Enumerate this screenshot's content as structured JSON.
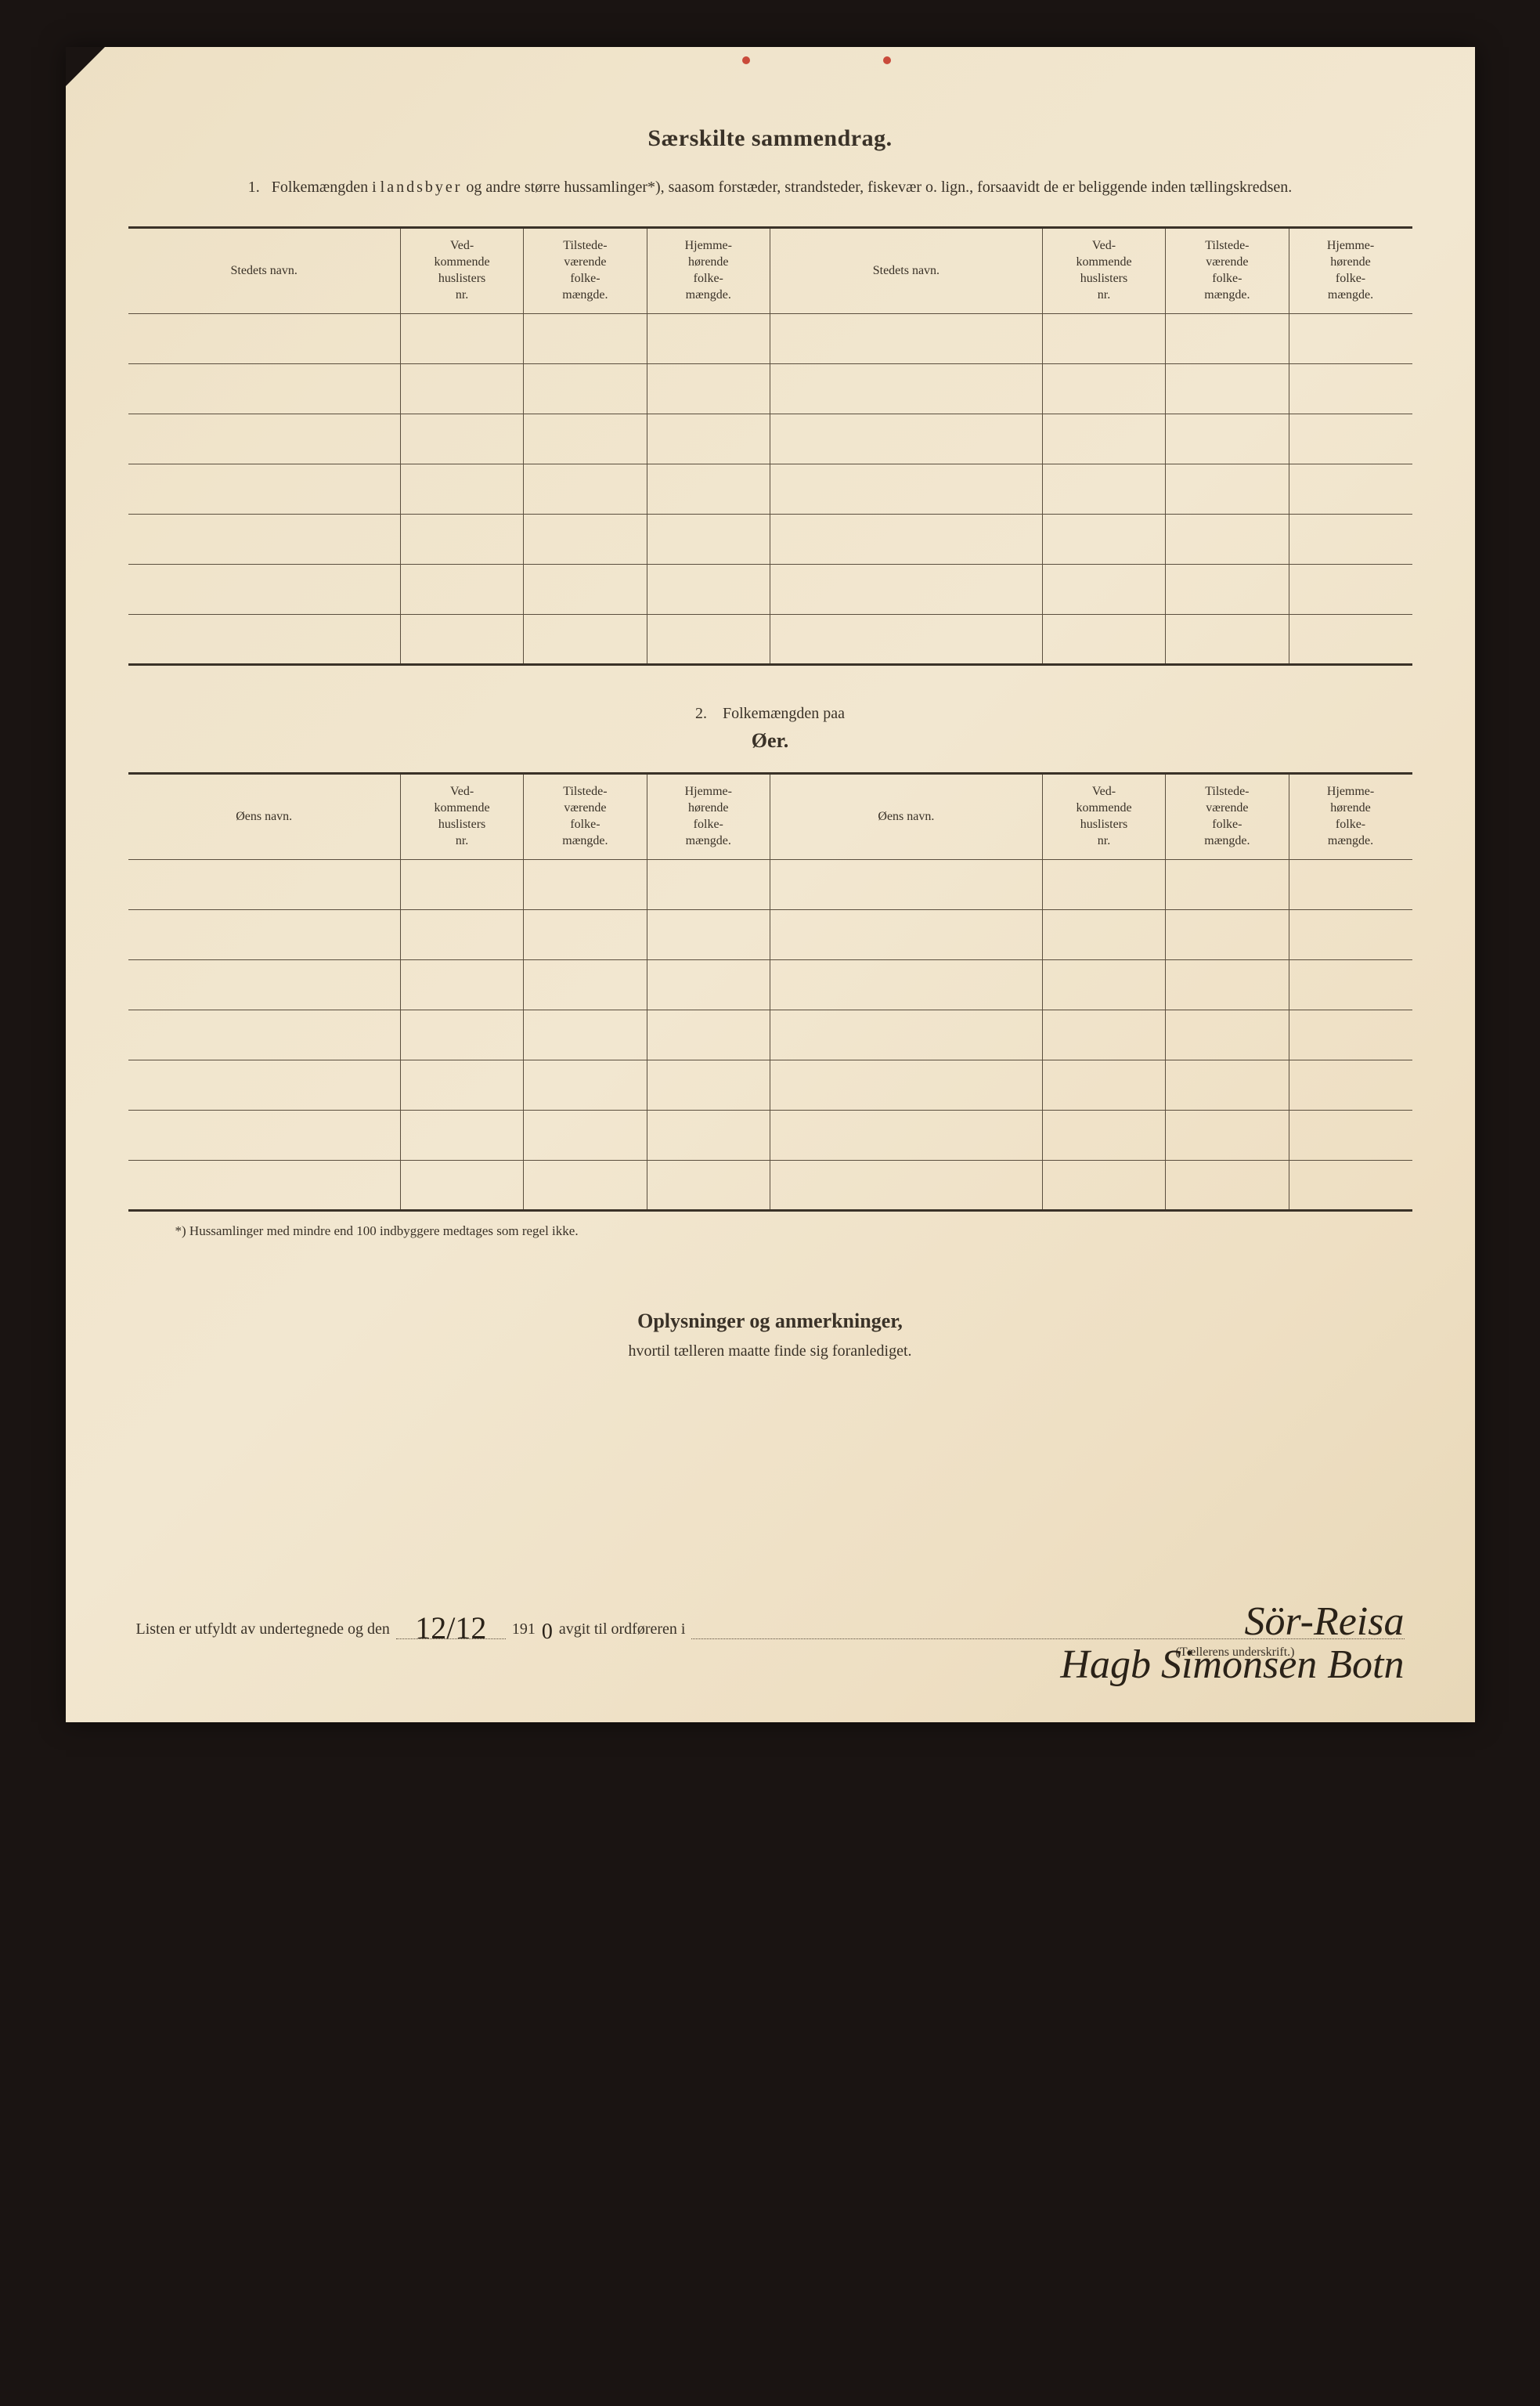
{
  "title": "Særskilte sammendrag.",
  "section1": {
    "number": "1.",
    "intro_part1": "Folkemængden i ",
    "intro_spaced": "landsbyer",
    "intro_part2": " og andre større hussamlinger*), saasom forstæder, strandsteder, fiskevær o. lign., forsaavidt de er beliggende inden tællingskredsen."
  },
  "table1": {
    "headers": {
      "name": "Stedets navn.",
      "huslisters": "Ved-\nkommende\nhuslisters\nnr.",
      "tilstede": "Tilstede-\nværende\nfolke-\nmængde.",
      "hjemme": "Hjemme-\nhørende\nfolke-\nmængde."
    },
    "rows": 7
  },
  "section2": {
    "number": "2.",
    "label": "Folkemængden paa",
    "title": "Øer."
  },
  "table2": {
    "headers": {
      "name": "Øens navn.",
      "huslisters": "Ved-\nkommende\nhuslisters\nnr.",
      "tilstede": "Tilstede-\nværende\nfolke-\nmængde.",
      "hjemme": "Hjemme-\nhørende\nfolke-\nmængde."
    },
    "rows": 7
  },
  "footnote": "*)  Hussamlinger med mindre end 100 indbyggere medtages som regel ikke.",
  "oplysninger": {
    "title": "Oplysninger og anmerkninger,",
    "subtitle": "hvortil tælleren maatte finde sig foranlediget."
  },
  "signature": {
    "prefix": "Listen er utfyldt av undertegnede og den",
    "date_hand": "12/12",
    "year_print": "191",
    "year_hand": "0",
    "mid": "avgit til ordføreren i",
    "place_hand": "Sör-Reisa",
    "name_hand": "Hagb Simonsen Botn",
    "caption": "(Tællerens underskrift.)"
  }
}
